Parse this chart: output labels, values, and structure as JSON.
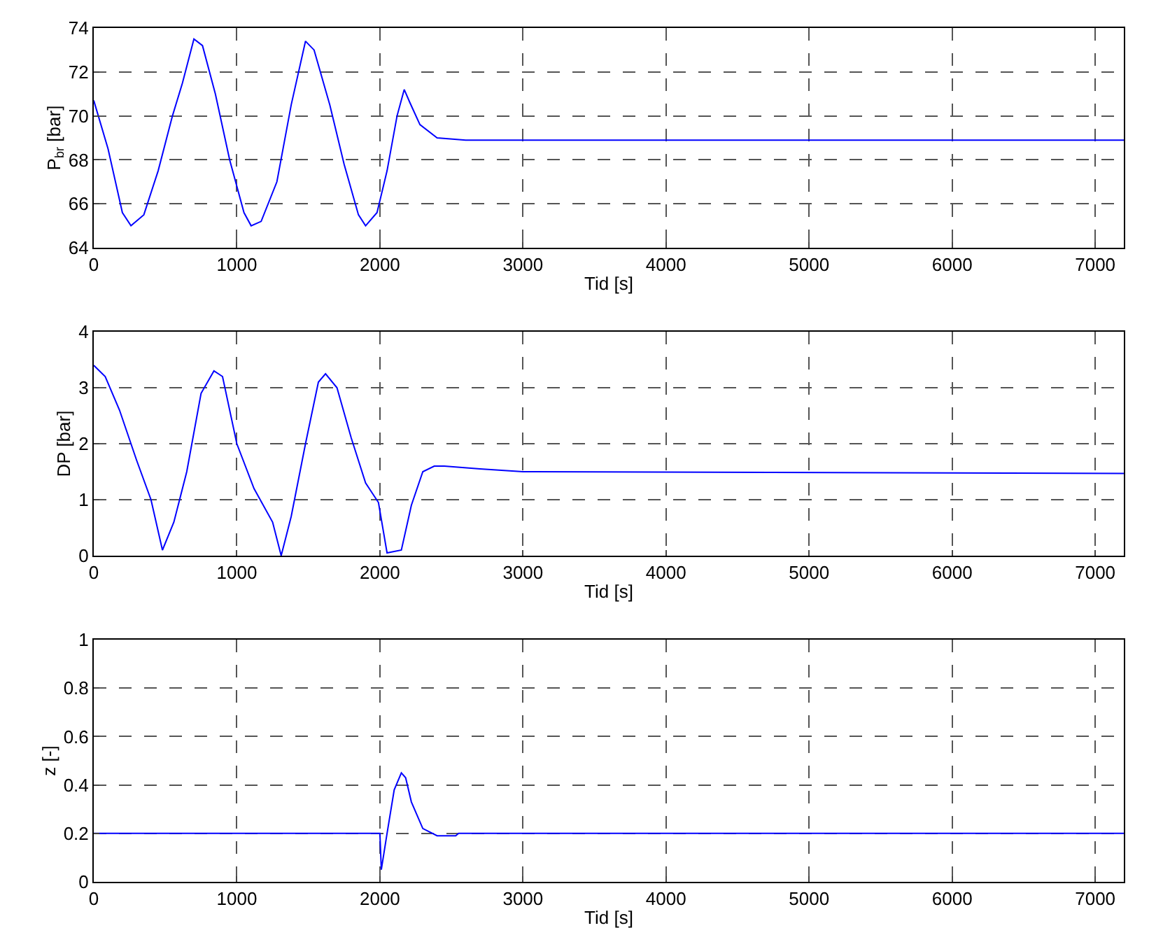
{
  "chart_data": [
    {
      "type": "line",
      "xlabel": "Tid [s]",
      "ylabel": "P$_{br}$ [bar]",
      "color": "#0000ff",
      "grid": true,
      "xlim": [
        0,
        7200
      ],
      "xticks": [
        0,
        1000,
        2000,
        3000,
        4000,
        5000,
        6000,
        7000
      ],
      "ylim": [
        64,
        74
      ],
      "yticks": [
        64,
        66,
        68,
        70,
        72,
        74
      ],
      "x": [
        0,
        100,
        200,
        260,
        350,
        450,
        550,
        620,
        700,
        760,
        850,
        950,
        1050,
        1100,
        1170,
        1280,
        1380,
        1480,
        1540,
        1650,
        1750,
        1850,
        1900,
        1980,
        2050,
        2120,
        2170,
        2210,
        2280,
        2400,
        2600,
        7200
      ],
      "values": [
        70.7,
        68.5,
        65.6,
        65.0,
        65.5,
        67.5,
        70.0,
        71.5,
        73.5,
        73.2,
        71.0,
        68.0,
        65.6,
        65.0,
        65.2,
        67.0,
        70.5,
        73.4,
        73.0,
        70.5,
        67.8,
        65.5,
        65.0,
        65.6,
        67.5,
        70.0,
        71.2,
        70.6,
        69.6,
        69.0,
        68.9,
        68.9
      ]
    },
    {
      "type": "line",
      "xlabel": "Tid [s]",
      "ylabel": "DP [bar]",
      "color": "#0000ff",
      "grid": true,
      "xlim": [
        0,
        7200
      ],
      "xticks": [
        0,
        1000,
        2000,
        3000,
        4000,
        5000,
        6000,
        7000
      ],
      "ylim": [
        0,
        4
      ],
      "yticks": [
        0,
        1,
        2,
        3,
        4
      ],
      "x": [
        0,
        80,
        180,
        300,
        400,
        480,
        560,
        650,
        750,
        840,
        900,
        1000,
        1120,
        1250,
        1310,
        1380,
        1480,
        1570,
        1620,
        1700,
        1800,
        1900,
        1990,
        2050,
        2150,
        2220,
        2300,
        2380,
        2450,
        2700,
        3000,
        7200
      ],
      "values": [
        3.4,
        3.2,
        2.6,
        1.7,
        1.0,
        0.1,
        0.6,
        1.5,
        2.9,
        3.3,
        3.2,
        2.0,
        1.2,
        0.6,
        0,
        0.7,
        2.0,
        3.1,
        3.25,
        3.0,
        2.1,
        1.3,
        0.95,
        0.05,
        0.1,
        0.9,
        1.5,
        1.6,
        1.6,
        1.55,
        1.5,
        1.47
      ]
    },
    {
      "type": "line",
      "xlabel": "Tid [s]",
      "ylabel": "z [-]",
      "color": "#0000ff",
      "grid": true,
      "xlim": [
        0,
        7200
      ],
      "xticks": [
        0,
        1000,
        2000,
        3000,
        4000,
        5000,
        6000,
        7000
      ],
      "ylim": [
        0,
        1
      ],
      "yticks": [
        0,
        0.2,
        0.4,
        0.6,
        0.8,
        1
      ],
      "x": [
        0,
        2000,
        2010,
        2050,
        2100,
        2150,
        2180,
        2220,
        2300,
        2400,
        2530,
        2550,
        7200
      ],
      "values": [
        0.2,
        0.2,
        0.05,
        0.2,
        0.38,
        0.45,
        0.43,
        0.33,
        0.22,
        0.19,
        0.19,
        0.2,
        0.2
      ]
    }
  ]
}
